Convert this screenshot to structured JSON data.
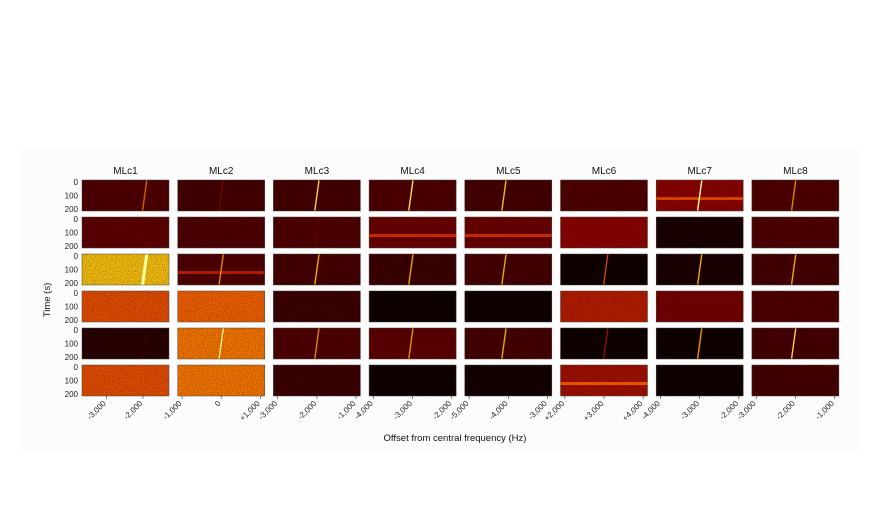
{
  "chart_data": {
    "type": "heatmap",
    "description_columns": "Waterfall spectrogram grid, 8 columns x 6 rows",
    "columns": [
      "MLc1",
      "MLc2",
      "MLc3",
      "MLc4",
      "MLc5",
      "MLc6",
      "MLc7",
      "MLc8"
    ],
    "ylabel": "Time (s)",
    "xlabel": "Offset from central frequency (Hz)",
    "yticks": [
      "0",
      "100",
      "200"
    ],
    "xticks": [
      [
        "-3,000",
        "-2,000"
      ],
      [
        "-1,000",
        "0",
        "+1,000"
      ],
      [
        "-3,000",
        "-2,000",
        "-1,000"
      ],
      [
        "-4,000",
        "-3,000",
        "-2,000"
      ],
      [
        "-5,000",
        "-4,000",
        "-3,000"
      ],
      [
        "+2,000",
        "+3,000",
        "+4,000"
      ],
      [
        "-4,000",
        "-3,000",
        "-2,000"
      ],
      [
        "-3,000",
        "-2,000",
        "-1,000"
      ]
    ],
    "panel_intensity": [
      [
        0.22,
        0.2,
        0.2,
        0.22,
        0.2,
        0.22,
        0.35,
        0.22
      ],
      [
        0.25,
        0.22,
        0.22,
        0.28,
        0.28,
        0.35,
        0.08,
        0.22
      ],
      [
        0.85,
        0.22,
        0.2,
        0.18,
        0.2,
        0.05,
        0.08,
        0.2
      ],
      [
        0.6,
        0.65,
        0.18,
        0.04,
        0.05,
        0.45,
        0.3,
        0.22
      ],
      [
        0.12,
        0.7,
        0.22,
        0.25,
        0.2,
        0.05,
        0.05,
        0.2
      ],
      [
        0.6,
        0.7,
        0.18,
        0.05,
        0.06,
        0.4,
        0.05,
        0.2
      ]
    ],
    "signal_trace_strength": [
      [
        0.6,
        0.2,
        0.9,
        0.9,
        0.85,
        0.0,
        1.0,
        0.7
      ],
      [
        0.0,
        0.0,
        0.1,
        0.0,
        0.0,
        0.0,
        0.0,
        0.0
      ],
      [
        1.0,
        0.7,
        0.8,
        0.8,
        0.8,
        0.7,
        0.9,
        0.8
      ],
      [
        0.0,
        0.0,
        0.0,
        0.0,
        0.0,
        0.0,
        0.0,
        0.0
      ],
      [
        0.1,
        0.8,
        0.7,
        0.7,
        0.8,
        0.5,
        0.9,
        0.9
      ],
      [
        0.0,
        0.0,
        0.0,
        0.0,
        0.0,
        0.0,
        0.0,
        0.0
      ]
    ],
    "signal_trace_position": [
      0.72,
      0.5,
      0.5,
      0.48,
      0.45,
      0.52,
      0.5,
      0.48
    ],
    "colormap": [
      "#000000",
      "#3a0000",
      "#8b0000",
      "#d42a00",
      "#ff6a00",
      "#ffc000",
      "#ffffa0"
    ]
  }
}
